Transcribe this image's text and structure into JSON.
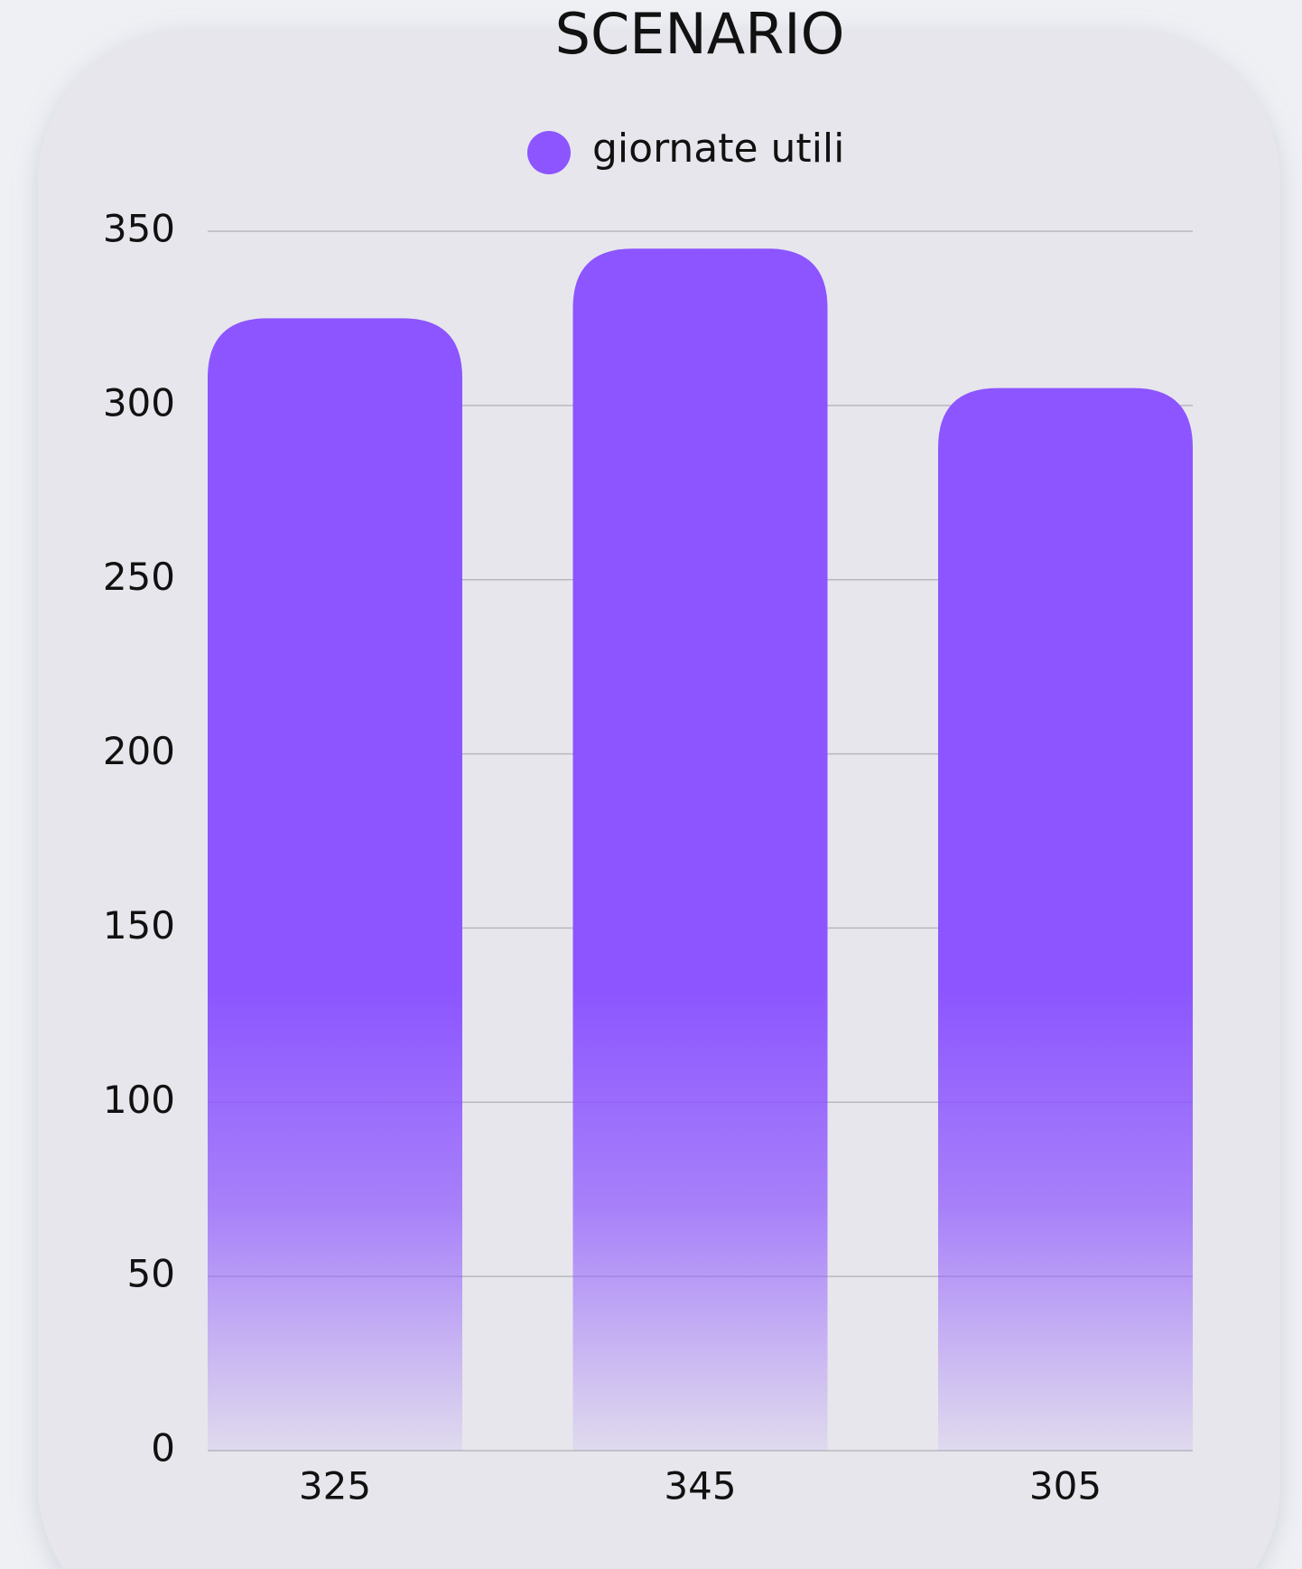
{
  "chart_data": {
    "type": "bar",
    "title": "SCENARIO",
    "legend": "giornate utili",
    "categories": [
      "325",
      "345",
      "305"
    ],
    "values": [
      325,
      345,
      305
    ],
    "color": "#8c55ff",
    "ylim": [
      0,
      350
    ],
    "yticks": [
      0,
      50,
      100,
      150,
      200,
      250,
      300,
      350
    ],
    "grid": true
  }
}
